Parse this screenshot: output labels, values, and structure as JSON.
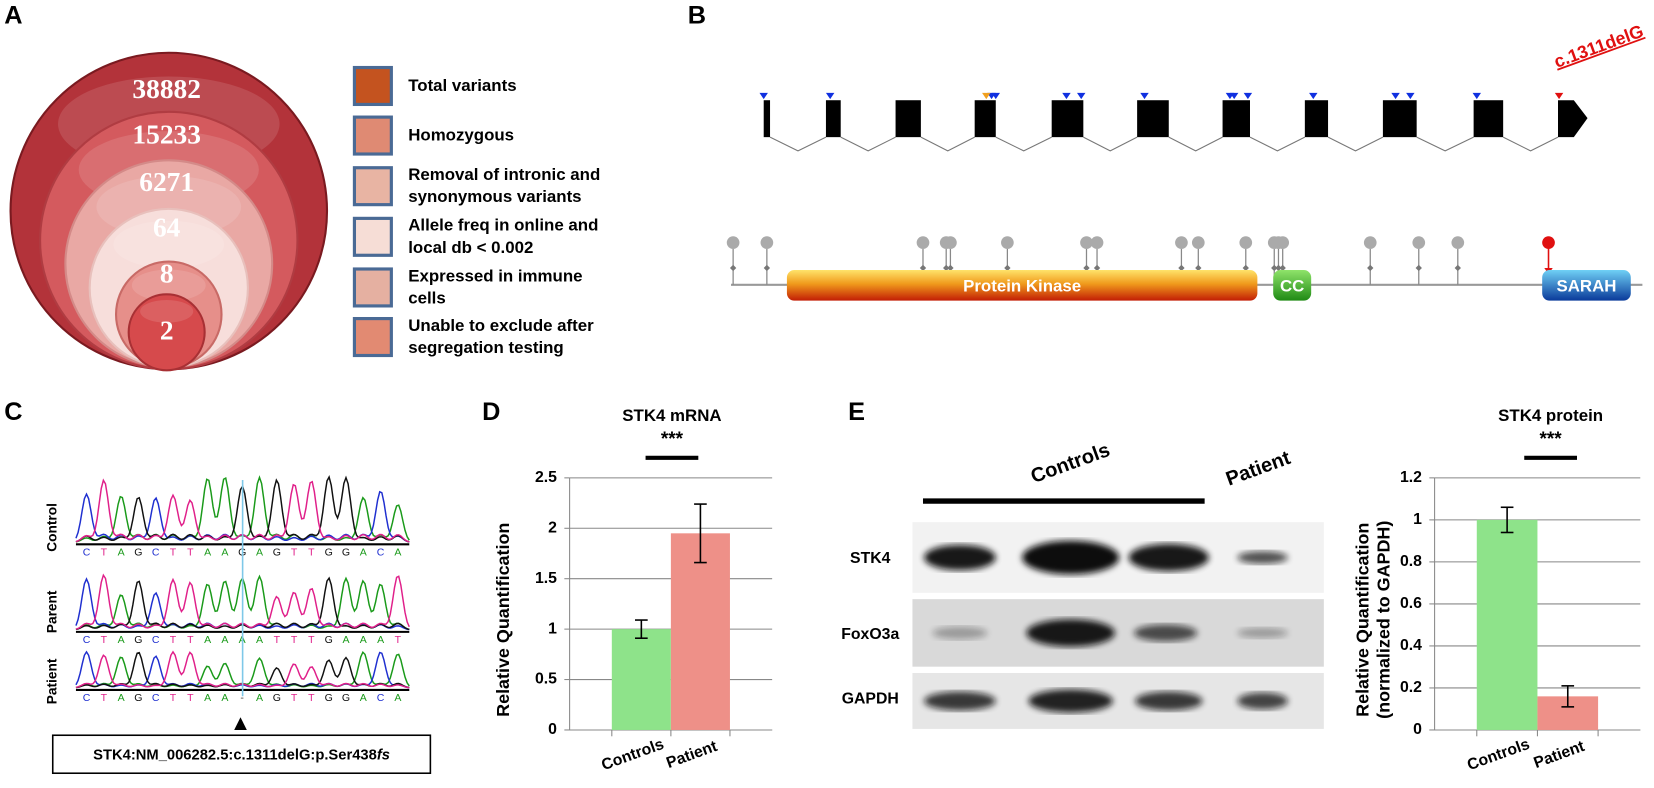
{
  "panel_labels": [
    "A",
    "B",
    "C",
    "D",
    "E"
  ],
  "funnel": {
    "counts": [
      38882,
      15233,
      6271,
      64,
      8,
      2
    ],
    "legend": [
      [
        "Total variants"
      ],
      [
        "Homozygous"
      ],
      [
        "Removal of intronic and",
        "synonymous variants"
      ],
      [
        "Allele freq in online and",
        "local db < 0.002"
      ],
      [
        "Expressed in immune",
        "cells"
      ],
      [
        "Unable to exclude after",
        "segregation testing"
      ]
    ]
  },
  "gene": {
    "variant": "c.1311delG",
    "domains": [
      "Protein Kinase",
      "CC",
      "SARAH"
    ]
  },
  "chromatogram": {
    "tracks": [
      {
        "label": "Control",
        "sequence": [
          "C",
          "T",
          "A",
          "G",
          "C",
          "T",
          "T",
          "A",
          "A",
          "G",
          "A",
          "G",
          "T",
          "T",
          "G",
          "G",
          "A",
          "C",
          "A"
        ]
      },
      {
        "label": "Parent",
        "sequence": [
          "C",
          "T",
          "A",
          "G",
          "C",
          "T",
          "T",
          "A",
          "A",
          "A",
          "A",
          "T",
          "T",
          "T",
          "G",
          "A",
          "A",
          "A",
          "T"
        ]
      },
      {
        "label": "Patient",
        "sequence": [
          "C",
          "T",
          "A",
          "G",
          "C",
          "T",
          "T",
          "A",
          "A",
          "-",
          "A",
          "G",
          "T",
          "T",
          "G",
          "G",
          "A",
          "C",
          "A"
        ]
      }
    ],
    "variant_label": [
      "STK4:NM_006282.5:c.1311delG:p.Ser438",
      "fs"
    ]
  },
  "blot": {
    "groups": [
      "Controls",
      "Patient"
    ],
    "rows": [
      "STK4",
      "FoxO3a",
      "GAPDH"
    ]
  },
  "chart_data": [
    {
      "type": "bar",
      "title": "STK4 mRNA",
      "annotation": "***",
      "y_label": "Relative Quantification",
      "categories": [
        "Controls",
        "Patient"
      ],
      "values": [
        1,
        1.95
      ],
      "errors": [
        0.09,
        0.29
      ],
      "colors": [
        "#8ee38a",
        "#ee9088"
      ],
      "ylim": [
        0,
        2.5
      ],
      "yticks": [
        0,
        0.5,
        1,
        1.5,
        2,
        2.5
      ],
      "grid": true
    },
    {
      "type": "bar",
      "title": "STK4 protein",
      "annotation": "***",
      "y_label": [
        "Relative Quantification",
        "(normalized to GAPDH)"
      ],
      "categories": [
        "Controls",
        "Patient"
      ],
      "values": [
        1,
        0.16
      ],
      "errors": [
        0.06,
        0.05
      ],
      "colors": [
        "#8ee38a",
        "#ee9088"
      ],
      "ylim": [
        0,
        1.2
      ],
      "yticks": [
        0,
        0.2,
        0.4,
        0.6,
        0.8,
        1,
        1.2
      ],
      "grid": true
    }
  ]
}
